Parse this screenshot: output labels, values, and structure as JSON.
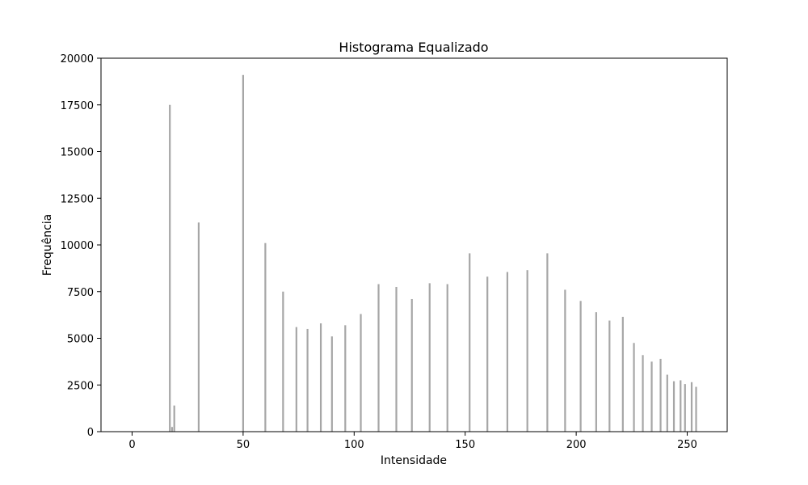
{
  "chart_data": {
    "type": "bar",
    "title": "Histograma Equalizado",
    "xlabel": "Intensidade",
    "ylabel": "Frequência",
    "xlim": [
      -14,
      268
    ],
    "ylim": [
      0,
      20000
    ],
    "xticks": [
      0,
      50,
      100,
      150,
      200,
      250
    ],
    "yticks": [
      0,
      2500,
      5000,
      7500,
      10000,
      12500,
      15000,
      17500,
      20000
    ],
    "bar_color": "#a6a6a6",
    "grid": false,
    "x": [
      17,
      18,
      19,
      30,
      50,
      60,
      68,
      74,
      79,
      85,
      90,
      96,
      103,
      111,
      119,
      126,
      134,
      142,
      152,
      160,
      169,
      178,
      187,
      195,
      202,
      209,
      215,
      221,
      226,
      230,
      234,
      238,
      241,
      244,
      247,
      249,
      252,
      254
    ],
    "values": [
      17500,
      250,
      1400,
      11200,
      19100,
      10100,
      7500,
      5600,
      5500,
      5800,
      5100,
      5700,
      6300,
      7900,
      7750,
      7100,
      7950,
      7900,
      9550,
      8300,
      8550,
      8650,
      9550,
      7600,
      7000,
      6400,
      5950,
      6150,
      4750,
      4100,
      3750,
      3900,
      3050,
      2700,
      2750,
      2550,
      2650,
      2400
    ]
  }
}
